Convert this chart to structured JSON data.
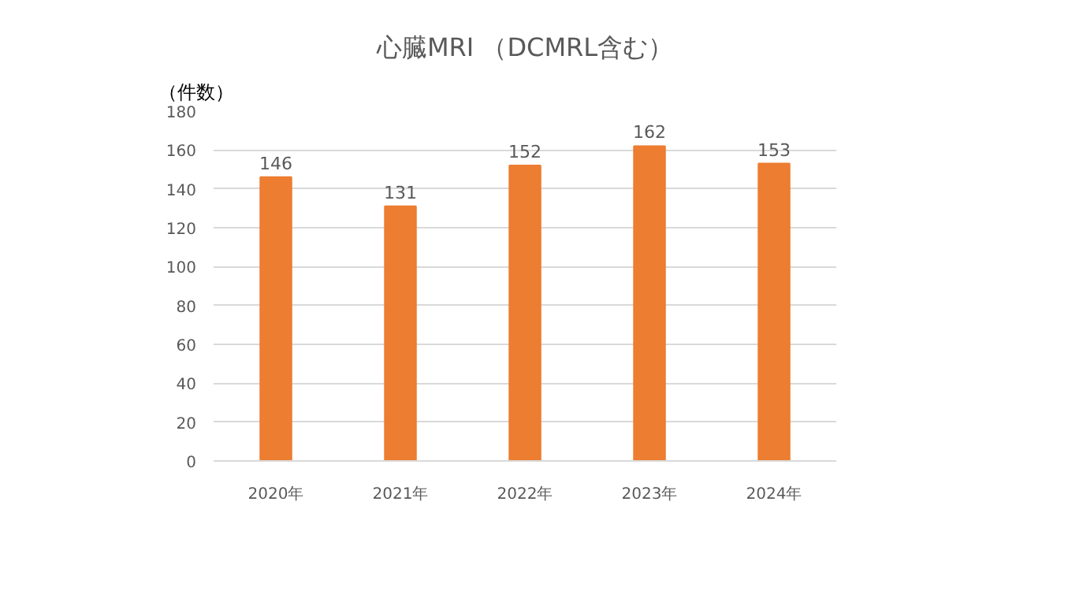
{
  "chart_data": {
    "type": "bar",
    "title": "心臓MRI （DCMRL含む）",
    "ylabel": "（件数）",
    "categories": [
      "2020年",
      "2021年",
      "2022年",
      "2023年",
      "2024年"
    ],
    "values": [
      146,
      131,
      152,
      162,
      153
    ],
    "color": "#ed7d31",
    "ylim": [
      0,
      180
    ],
    "yticks": [
      0,
      20,
      40,
      60,
      80,
      100,
      120,
      140,
      160,
      180
    ],
    "grid": "y",
    "data_labels": true
  }
}
